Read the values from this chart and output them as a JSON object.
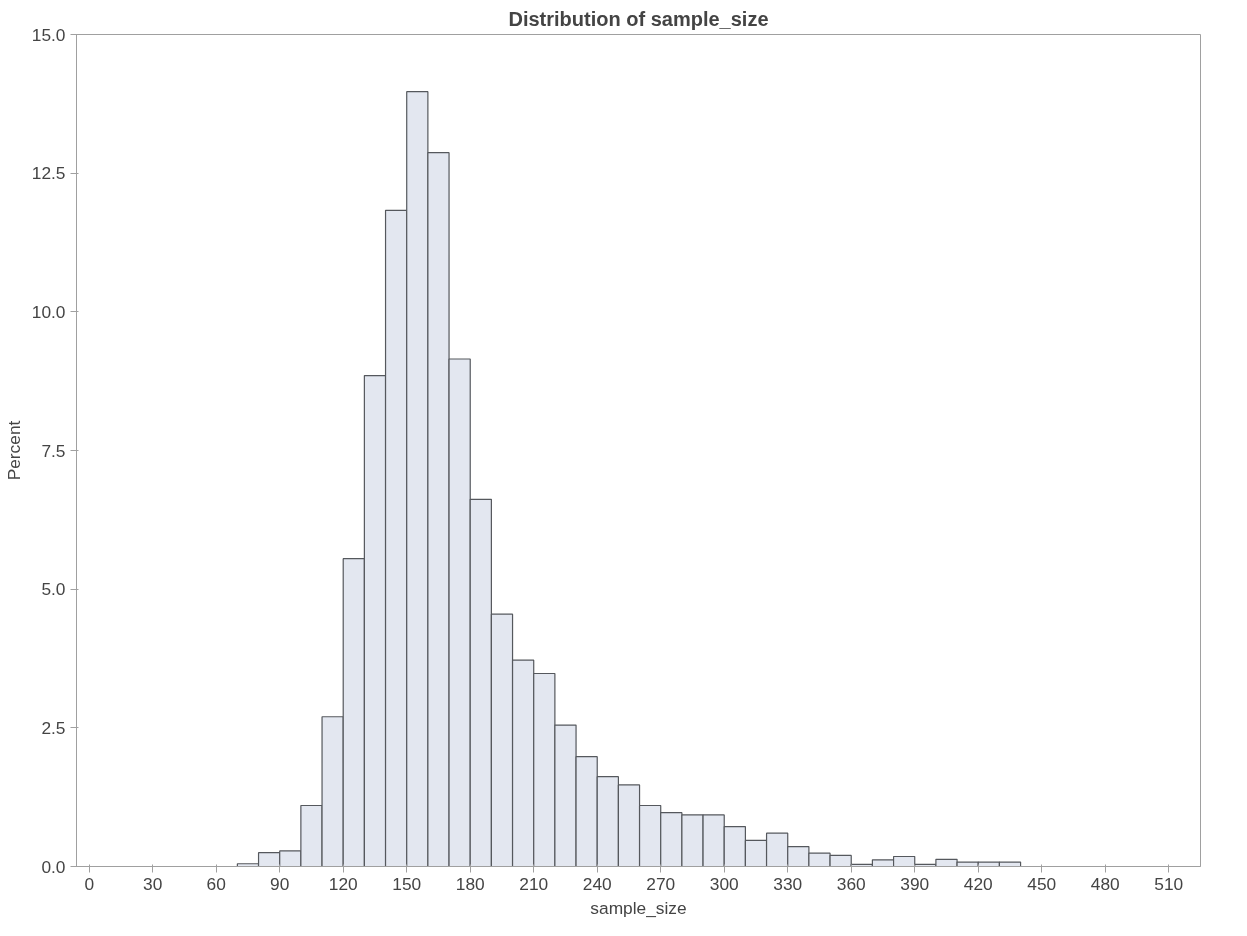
{
  "chart_data": {
    "type": "histogram",
    "title": "Distribution of sample_size",
    "xlabel": "sample_size",
    "ylabel": "Percent",
    "bins": [
      70,
      80,
      90,
      100,
      110,
      120,
      130,
      140,
      150,
      160,
      170,
      180,
      190,
      200,
      210,
      220,
      230,
      240,
      250,
      260,
      270,
      280,
      290,
      300,
      310,
      320,
      330,
      340,
      350,
      360,
      370,
      380,
      390,
      400,
      410,
      420,
      430,
      440
    ],
    "values": [
      0.05,
      0.25,
      0.28,
      1.1,
      2.7,
      5.55,
      8.85,
      11.83,
      13.97,
      12.87,
      9.15,
      6.62,
      4.55,
      3.72,
      3.48,
      2.55,
      1.98,
      1.62,
      1.47,
      1.1,
      0.97,
      0.93,
      0.93,
      0.72,
      0.47,
      0.6,
      0.36,
      0.24,
      0.2,
      0.04,
      0.12,
      0.18,
      0.04,
      0.13,
      0.08,
      0.08,
      0.08
    ],
    "color": "#e3e7f0",
    "xlim": [
      -6,
      525
    ],
    "ylim": [
      0,
      15
    ],
    "xticks": [
      0,
      30,
      60,
      90,
      120,
      150,
      180,
      210,
      240,
      270,
      300,
      330,
      360,
      390,
      420,
      450,
      480,
      510
    ],
    "yticks": [
      {
        "value": 0,
        "label": "0.0"
      },
      {
        "value": 2.5,
        "label": "2.5"
      },
      {
        "value": 5,
        "label": "5.0"
      },
      {
        "value": 7.5,
        "label": "7.5"
      },
      {
        "value": 10,
        "label": "10.0"
      },
      {
        "value": 12.5,
        "label": "12.5"
      },
      {
        "value": 15,
        "label": "15.0"
      }
    ],
    "grid": false
  }
}
